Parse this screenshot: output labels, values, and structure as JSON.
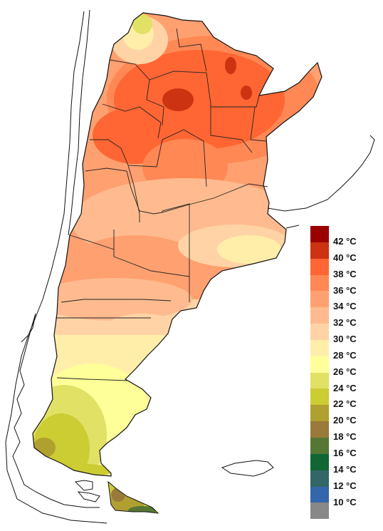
{
  "legend": {
    "entries": [
      {
        "label": "42 °C",
        "color": "#9b0000"
      },
      {
        "label": "40 °C",
        "color": "#cc3311"
      },
      {
        "label": "38 °C",
        "color": "#ff6633"
      },
      {
        "label": "36 °C",
        "color": "#ff8855"
      },
      {
        "label": "34 °C",
        "color": "#ffa070"
      },
      {
        "label": "32 °C",
        "color": "#ffbb8f"
      },
      {
        "label": "30 °C",
        "color": "#ffd3a5"
      },
      {
        "label": "28 °C",
        "color": "#ffeeaa"
      },
      {
        "label": "26 °C",
        "color": "#ffff99"
      },
      {
        "label": "24 °C",
        "color": "#e1e166"
      },
      {
        "label": "22 °C",
        "color": "#cccc33"
      },
      {
        "label": "20 °C",
        "color": "#b0a030"
      },
      {
        "label": "18 °C",
        "color": "#9a7a3a"
      },
      {
        "label": "16 °C",
        "color": "#557733"
      },
      {
        "label": "14 °C",
        "color": "#116633"
      },
      {
        "label": "12 °C",
        "color": "#336666"
      },
      {
        "label": "10 °C",
        "color": "#3366aa"
      },
      {
        "label": "",
        "color": "#888888"
      }
    ]
  },
  "map": {
    "land_outline_color": "#111111",
    "background_color": "#ffffff"
  }
}
